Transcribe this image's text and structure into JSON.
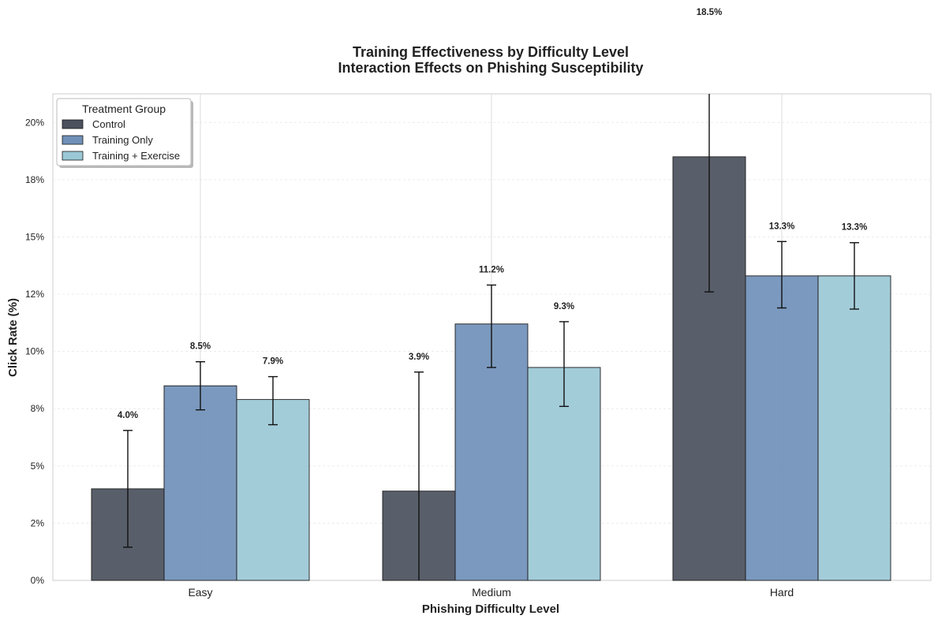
{
  "chart_data": {
    "type": "bar",
    "title": "Training Effectiveness by Difficulty Level",
    "subtitle": "Interaction Effects on Phishing Susceptibility",
    "xlabel": "Phishing Difficulty Level",
    "ylabel": "Click Rate (%)",
    "categories": [
      "Easy",
      "Medium",
      "Hard"
    ],
    "ylim": [
      0,
      21.25
    ],
    "yticks": [
      0,
      2.5,
      5,
      7.5,
      10,
      12.5,
      15,
      17.5,
      20
    ],
    "ytick_labels": [
      "0%",
      "2%",
      "5%",
      "8%",
      "10%",
      "12%",
      "15%",
      "18%",
      "20%"
    ],
    "grid": true,
    "legend": {
      "title": "Treatment Group",
      "position": "top-left"
    },
    "series": [
      {
        "name": "Control",
        "color": "#4b515d",
        "values": [
          4.0,
          3.9,
          18.5
        ],
        "err_low": [
          1.45,
          0.0,
          12.6
        ],
        "err_high": [
          6.55,
          9.1,
          21.25
        ],
        "labels": [
          "4.0%",
          "3.9%",
          "18.5%"
        ]
      },
      {
        "name": "Training Only",
        "color": "#7090b8",
        "values": [
          8.5,
          11.2,
          13.3
        ],
        "err_low": [
          7.45,
          9.3,
          11.9
        ],
        "err_high": [
          9.55,
          12.9,
          14.8
        ],
        "labels": [
          "8.5%",
          "11.2%",
          "13.3%"
        ]
      },
      {
        "name": "Training + Exercise",
        "color": "#9bc8d6",
        "values": [
          7.9,
          9.3,
          13.3
        ],
        "err_low": [
          6.8,
          7.6,
          11.85
        ],
        "err_high": [
          8.9,
          11.3,
          14.75
        ],
        "labels": [
          "7.9%",
          "9.3%",
          "13.3%"
        ]
      }
    ]
  }
}
